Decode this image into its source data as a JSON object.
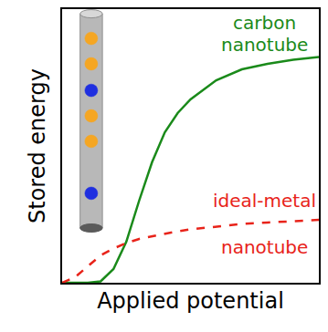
{
  "chart_data": {
    "type": "line",
    "x_label": "Applied potential",
    "y_label": "Stored energy",
    "x": [
      0,
      0.05,
      0.1,
      0.15,
      0.2,
      0.25,
      0.3,
      0.35,
      0.4,
      0.45,
      0.5,
      0.6,
      0.7,
      0.8,
      0.9,
      1
    ],
    "series": [
      {
        "name": "carbon nanotube",
        "color": "#1a8a1a",
        "line_style": "solid",
        "values": [
          0,
          0,
          0,
          0.005,
          0.05,
          0.15,
          0.3,
          0.44,
          0.55,
          0.62,
          0.67,
          0.74,
          0.78,
          0.8,
          0.815,
          0.825
        ]
      },
      {
        "name": "ideal-metal nanotube",
        "color": "#e8231a",
        "line_style": "dashed",
        "values": [
          0,
          0.02,
          0.06,
          0.1,
          0.125,
          0.145,
          0.16,
          0.17,
          0.18,
          0.188,
          0.195,
          0.205,
          0.215,
          0.22,
          0.225,
          0.23
        ]
      }
    ],
    "xlim": [
      0,
      1
    ],
    "ylim": [
      0,
      1
    ],
    "xticks": [],
    "yticks": [],
    "tick_labels": false,
    "grid": false,
    "legend": "none"
  }
}
